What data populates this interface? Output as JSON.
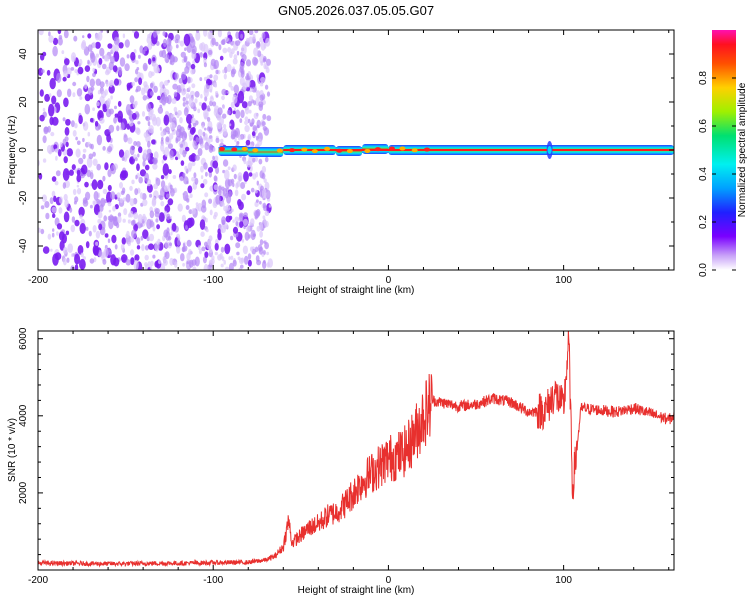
{
  "title": "GN05.2026.037.05.05.G07",
  "colors": {
    "snr_line": "#e8302e",
    "axis": "#000000",
    "scatter": "#7b1fe8",
    "background": "#ffffff"
  },
  "chart_data": [
    {
      "type": "heatmap",
      "name": "spectrogram",
      "xlabel": "Height of straight line (km)",
      "ylabel": "Frequency (Hz)",
      "xlim": [
        -200,
        163
      ],
      "ylim": [
        -50,
        50
      ],
      "x_ticks": [
        "-200",
        "-100",
        "0",
        "100"
      ],
      "y_ticks": [
        "-40",
        "-20",
        "0",
        "20",
        "40"
      ],
      "x_tick_values": [
        -200,
        -100,
        0,
        100
      ],
      "y_tick_values": [
        -40,
        -20,
        0,
        20,
        40
      ],
      "noise_extent_km": [
        -200,
        -68
      ],
      "ridge_start_km": -97,
      "ridge_frequency_hz": 0,
      "colorbar": {
        "label": "Normalized spectral amplitude",
        "range": [
          0,
          1
        ],
        "ticks": [
          "0.0",
          "0.2",
          "0.4",
          "0.6",
          "0.8"
        ],
        "tick_values": [
          0.0,
          0.2,
          0.4,
          0.6,
          0.8
        ]
      }
    },
    {
      "type": "line",
      "name": "snr",
      "xlabel": "Height of straight line (km)",
      "ylabel": "SNR (10 * v/v)",
      "xlim": [
        -200,
        163
      ],
      "ylim": [
        0,
        6200
      ],
      "x_ticks": [
        "-200",
        "-100",
        "0",
        "100"
      ],
      "y_ticks": [
        "2000",
        "4000",
        "6000"
      ],
      "x_tick_values": [
        -200,
        -100,
        0,
        100
      ],
      "y_tick_values": [
        2000,
        4000,
        6000
      ],
      "series": [
        {
          "name": "SNR",
          "x": [
            -200,
            -180,
            -160,
            -140,
            -120,
            -100,
            -80,
            -70,
            -65,
            -60,
            -57,
            -55,
            -50,
            -45,
            -40,
            -35,
            -30,
            -25,
            -20,
            -15,
            -10,
            -5,
            0,
            5,
            10,
            15,
            20,
            25,
            30,
            40,
            50,
            60,
            70,
            80,
            90,
            95,
            100,
            103,
            105,
            110,
            120,
            130,
            140,
            150,
            160,
            163
          ],
          "y": [
            180,
            170,
            160,
            170,
            175,
            190,
            200,
            260,
            350,
            600,
            1300,
            700,
            900,
            1100,
            1200,
            1400,
            1500,
            1700,
            2000,
            2300,
            2500,
            2700,
            2900,
            2950,
            3100,
            3500,
            4000,
            4400,
            4350,
            4250,
            4300,
            4450,
            4350,
            4100,
            4150,
            4600,
            4200,
            6000,
            2100,
            4200,
            4150,
            4100,
            4200,
            4050,
            3900,
            4000
          ]
        }
      ]
    }
  ]
}
